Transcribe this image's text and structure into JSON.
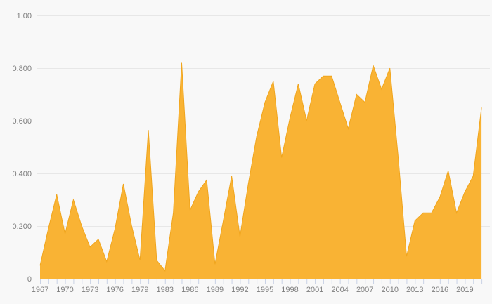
{
  "chart_data": {
    "type": "area",
    "title": "",
    "xlabel": "",
    "ylabel": "",
    "ylim": [
      0,
      1
    ],
    "grid": "horizontal",
    "legend": "none",
    "x": [
      "1967",
      "1968",
      "1969",
      "1970",
      "1971",
      "1972",
      "1973",
      "1974",
      "1975",
      "1976",
      "1977",
      "1978",
      "1979",
      "1981",
      "1982",
      "1983",
      "1984",
      "1985",
      "1986",
      "1987",
      "1988",
      "1989",
      "1990",
      "1991",
      "1992",
      "1993",
      "1994",
      "1995",
      "1996",
      "1997",
      "1998",
      "1999",
      "2000",
      "2001",
      "2002",
      "2003",
      "2004",
      "2005",
      "2006",
      "2007",
      "2008",
      "2009",
      "2010",
      "2011",
      "2012",
      "2013",
      "2014",
      "2015",
      "2016",
      "2017",
      "2018",
      "2019",
      "2020",
      "2021"
    ],
    "values": [
      0.05,
      0.19,
      0.32,
      0.17,
      0.3,
      0.2,
      0.12,
      0.15,
      0.065,
      0.19,
      0.36,
      0.2,
      0.07,
      0.565,
      0.07,
      0.03,
      0.25,
      0.82,
      0.26,
      0.33,
      0.375,
      0.055,
      0.22,
      0.39,
      0.16,
      0.36,
      0.54,
      0.67,
      0.75,
      0.46,
      0.61,
      0.74,
      0.6,
      0.74,
      0.77,
      0.77,
      0.67,
      0.57,
      0.7,
      0.67,
      0.81,
      0.72,
      0.8,
      0.46,
      0.085,
      0.22,
      0.25,
      0.25,
      0.31,
      0.41,
      0.25,
      0.33,
      0.39,
      0.65
    ],
    "x_label_every_n_ticks": 3,
    "x_tick_labels_shown": [
      "1967",
      "1970",
      "1973",
      "1976",
      "1979",
      "1983",
      "1986",
      "1989",
      "1992",
      "1995",
      "1998",
      "2001",
      "2004",
      "2007",
      "2010",
      "2013",
      "2016",
      "2019"
    ],
    "y_ticks": [
      {
        "value": 0,
        "label": "0"
      },
      {
        "value": 0.2,
        "label": "0.200"
      },
      {
        "value": 0.4,
        "label": "0.400"
      },
      {
        "value": 0.6,
        "label": "0.600"
      },
      {
        "value": 0.8,
        "label": "0.800"
      },
      {
        "value": 1.0,
        "label": "1.00"
      }
    ]
  },
  "colors": {
    "background": "#f8f8f8",
    "area_fill": "#f9b334",
    "area_stroke": "#f0a51d",
    "gridline": "#e7e7e7",
    "axis_line": "#d5dbe6",
    "tick_mark": "#c9d2e5",
    "label_text": "#7e7e7e"
  }
}
